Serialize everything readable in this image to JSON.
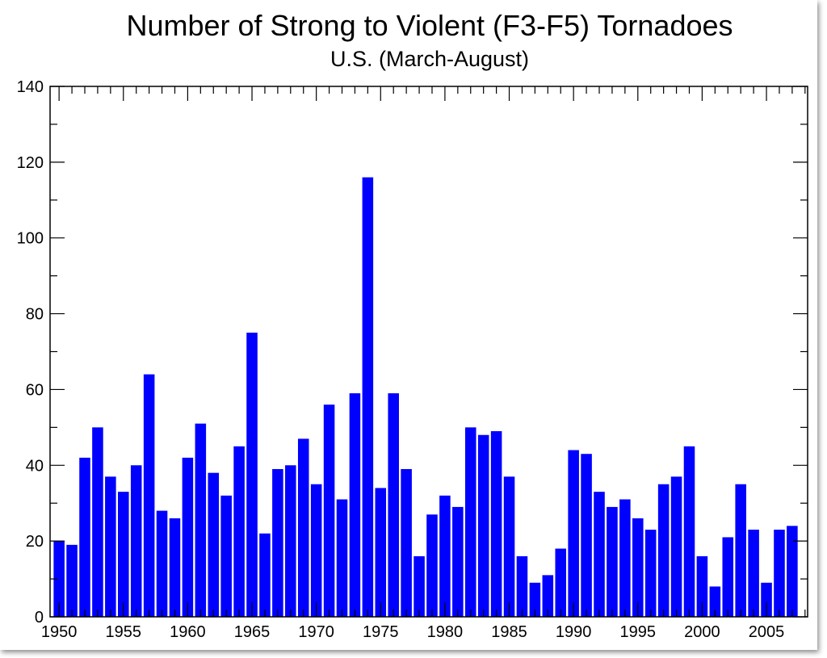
{
  "chart_data": {
    "type": "bar",
    "title": "Number of Strong to Violent (F3-F5) Tornadoes",
    "subtitle": "U.S.  (March-August)",
    "xlabel": "",
    "ylabel": "",
    "bar_color": "#0000ff",
    "x": [
      1950,
      1951,
      1952,
      1953,
      1954,
      1955,
      1956,
      1957,
      1958,
      1959,
      1960,
      1961,
      1962,
      1963,
      1964,
      1965,
      1966,
      1967,
      1968,
      1969,
      1970,
      1971,
      1972,
      1973,
      1974,
      1975,
      1976,
      1977,
      1978,
      1979,
      1980,
      1981,
      1982,
      1983,
      1984,
      1985,
      1986,
      1987,
      1988,
      1989,
      1990,
      1991,
      1992,
      1993,
      1994,
      1995,
      1996,
      1997,
      1998,
      1999,
      2000,
      2001,
      2002,
      2003,
      2004,
      2005,
      2006,
      2007
    ],
    "values": [
      20,
      19,
      42,
      50,
      37,
      33,
      40,
      64,
      28,
      26,
      42,
      51,
      38,
      32,
      45,
      75,
      22,
      39,
      40,
      47,
      35,
      56,
      31,
      59,
      116,
      34,
      59,
      39,
      16,
      27,
      32,
      29,
      50,
      48,
      49,
      37,
      16,
      9,
      11,
      18,
      44,
      43,
      33,
      29,
      31,
      26,
      23,
      35,
      37,
      45,
      16,
      8,
      21,
      35,
      23,
      9,
      23,
      24
    ],
    "xlim": [
      1949.3,
      2008.2
    ],
    "ylim": [
      0,
      140
    ],
    "x_ticks": [
      "1950",
      "1955",
      "1960",
      "1965",
      "1970",
      "1975",
      "1980",
      "1985",
      "1990",
      "1995",
      "2000",
      "2005"
    ],
    "y_ticks": [
      "0",
      "20",
      "40",
      "60",
      "80",
      "100",
      "120",
      "140"
    ],
    "grid": false
  }
}
